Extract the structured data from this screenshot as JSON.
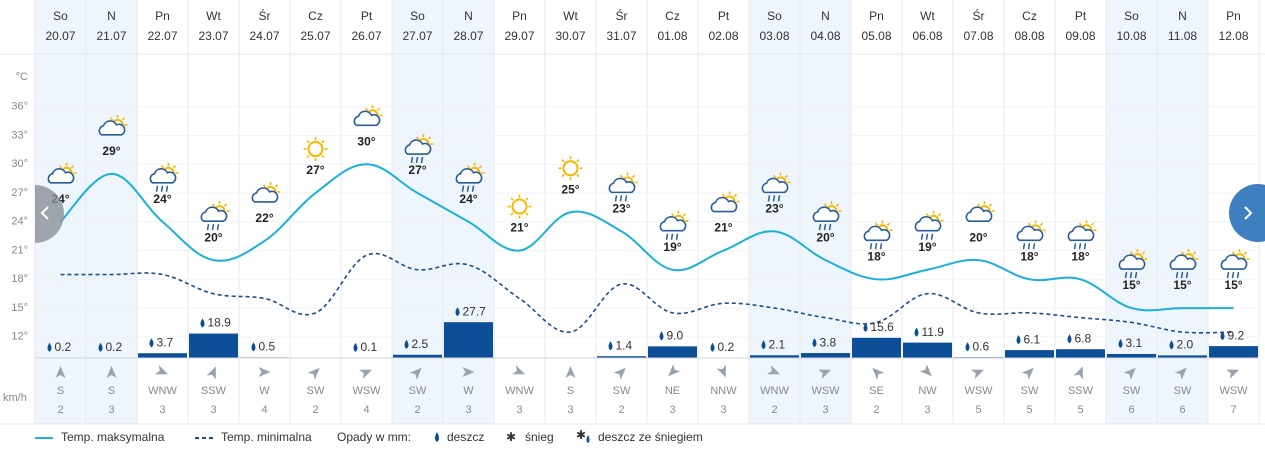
{
  "chart_data": {
    "type": "weather",
    "weekdays": [
      "So",
      "N",
      "Pn",
      "Wt",
      "Śr",
      "Cz",
      "Pt",
      "So",
      "N",
      "Pn",
      "Wt",
      "Śr",
      "Cz",
      "Pt",
      "So",
      "N",
      "Pn",
      "Wt",
      "Śr",
      "Cz",
      "Pt",
      "So",
      "N",
      "Pn"
    ],
    "dates": [
      "20.07",
      "21.07",
      "22.07",
      "23.07",
      "24.07",
      "25.07",
      "26.07",
      "27.07",
      "28.07",
      "29.07",
      "30.07",
      "31.07",
      "01.08",
      "02.08",
      "03.08",
      "04.08",
      "05.08",
      "06.08",
      "07.08",
      "08.08",
      "09.08",
      "10.08",
      "11.08",
      "12.08"
    ],
    "y_label": "°C",
    "ylim": [
      10,
      39
    ],
    "yticks": [
      {
        "value": 36,
        "label": "36°"
      },
      {
        "value": 33,
        "label": "33°"
      },
      {
        "value": 30,
        "label": "30°"
      },
      {
        "value": 27,
        "label": "27°"
      },
      {
        "value": 24,
        "label": "24°"
      },
      {
        "value": 21,
        "label": "21°"
      },
      {
        "value": 18,
        "label": "18°"
      },
      {
        "value": 15,
        "label": "15°"
      },
      {
        "value": 12,
        "label": "12°"
      }
    ],
    "grid": true,
    "y2lim": [
      0,
      215
    ],
    "series": [
      {
        "name": "Temp. maksymalna",
        "color": "#1bb0dc",
        "values": [
          24,
          29,
          24,
          20,
          22,
          27,
          30,
          27,
          24,
          21,
          25,
          23,
          19,
          21,
          23,
          20,
          18,
          19,
          20,
          18,
          18,
          15,
          15,
          15
        ],
        "value_labels": [
          "24°",
          "29°",
          "24°",
          "20°",
          "22°",
          "27°",
          "30°",
          "27°",
          "24°",
          "21°",
          "25°",
          "23°",
          "19°",
          "21°",
          "23°",
          "20°",
          "18°",
          "19°",
          "20°",
          "18°",
          "18°",
          "15°",
          "15°",
          "15°"
        ]
      },
      {
        "name": "Temp. minimalna",
        "color": "#1f4e8c",
        "values": [
          18.5,
          18.5,
          18.5,
          16.5,
          16,
          14.5,
          20.5,
          19,
          19.5,
          16,
          12.5,
          17.5,
          14.5,
          15.5,
          15,
          14,
          13.5,
          16.5,
          14.5,
          14.5,
          14,
          13.5,
          12.5,
          12.5
        ]
      },
      {
        "name": "deszcz",
        "color": "#0d4f96",
        "axis": "y2",
        "values": [
          0.2,
          0.2,
          3.7,
          18.9,
          0.5,
          null,
          0.1,
          2.5,
          27.7,
          null,
          null,
          1.4,
          9.0,
          0.2,
          2.1,
          3.8,
          15.6,
          11.9,
          0.6,
          6.1,
          6.8,
          3.1,
          2.0,
          9.2
        ],
        "value_labels": [
          "0.2",
          "0.2",
          "3.7",
          "18.9",
          "0.5",
          null,
          "0.1",
          "2.5",
          "27.7",
          null,
          null,
          "1.4",
          "9.0",
          "0.2",
          "2.1",
          "3.8",
          "15.6",
          "11.9",
          "0.6",
          "6.1",
          "6.8",
          "3.1",
          "2.0",
          "9.2"
        ]
      }
    ],
    "precip_legend_label": "Opady w mm:",
    "legend_extra": [
      "śnieg",
      "deszcz ze śniegiem"
    ],
    "wind_unit": "km/h",
    "wind_directions": [
      "S",
      "S",
      "WNW",
      "SSW",
      "W",
      "SW",
      "WSW",
      "SW",
      "W",
      "WNW",
      "S",
      "SW",
      "NE",
      "NNW",
      "WNW",
      "WSW",
      "SE",
      "NW",
      "WSW",
      "SW",
      "SSW",
      "SW",
      "SW",
      "WSW"
    ],
    "wind_speeds": [
      2,
      3,
      3,
      3,
      4,
      2,
      4,
      2,
      3,
      3,
      3,
      2,
      3,
      3,
      2,
      3,
      2,
      3,
      5,
      5,
      5,
      6,
      6,
      7
    ]
  }
}
